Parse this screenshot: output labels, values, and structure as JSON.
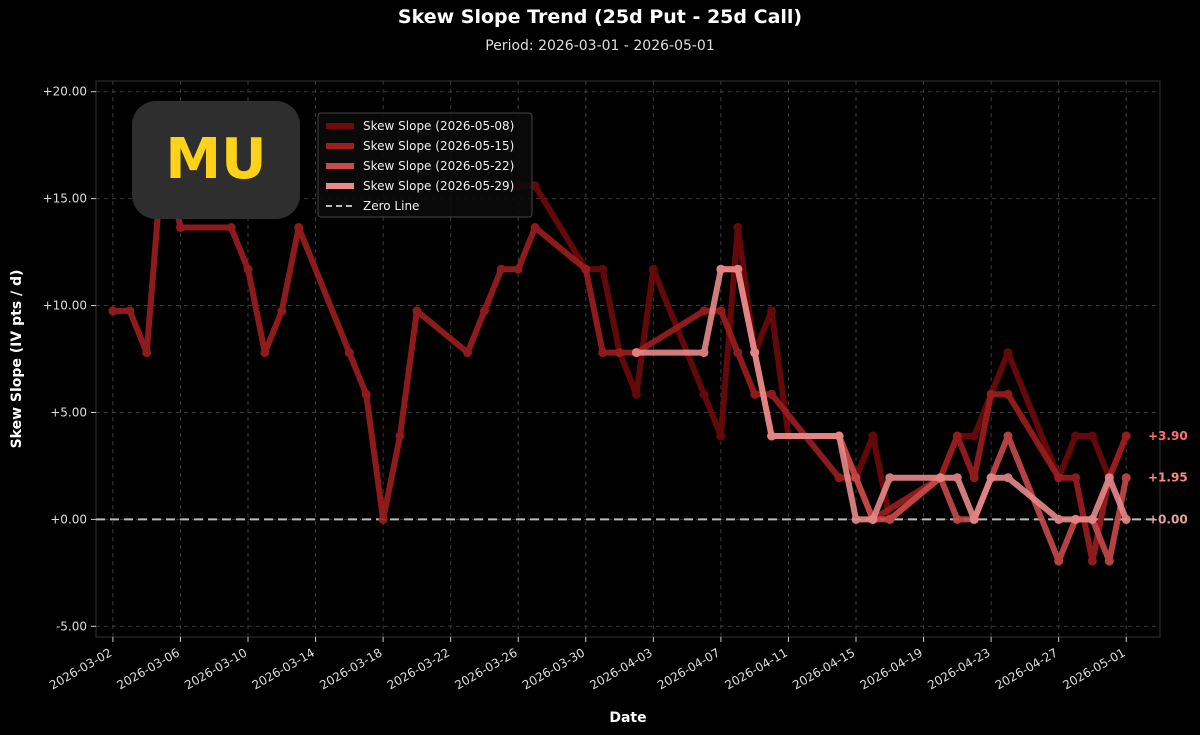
{
  "chart_data": {
    "type": "line",
    "title": "Skew Slope Trend (25d Put - 25d Call)",
    "subtitle": "Period: 2026-03-01 - 2026-05-01",
    "xlabel": "Date",
    "ylabel": "Skew Slope (IV pts / d)",
    "ylim": [
      -5.5,
      20.5
    ],
    "xlim": [
      "2026-02-29",
      "2026-05-03"
    ],
    "yticks": [
      "-5.00",
      "+0.00",
      "+5.00",
      "+10.00",
      "+15.00",
      "+20.00"
    ],
    "xticks": [
      "2026-03-02",
      "2026-03-06",
      "2026-03-10",
      "2026-03-14",
      "2026-03-18",
      "2026-03-22",
      "2026-03-26",
      "2026-03-30",
      "2026-04-03",
      "2026-04-07",
      "2026-04-11",
      "2026-04-15",
      "2026-04-19",
      "2026-04-23",
      "2026-04-27",
      "2026-05-01"
    ],
    "grid": true,
    "legend_position": "top-left",
    "series": [
      {
        "name": "Skew Slope (2026-05-08)",
        "color": "#6e0a0a",
        "points": [
          [
            "2026-03-26",
            15.6
          ],
          [
            "2026-03-27",
            15.6
          ],
          [
            "2026-03-30",
            11.7
          ],
          [
            "2026-03-31",
            11.7
          ],
          [
            "2026-04-01",
            7.8
          ],
          [
            "2026-04-02",
            5.85
          ],
          [
            "2026-04-03",
            11.7
          ],
          [
            "2026-04-06",
            5.85
          ],
          [
            "2026-04-07",
            3.9
          ],
          [
            "2026-04-08",
            13.65
          ],
          [
            "2026-04-09",
            7.8
          ],
          [
            "2026-04-10",
            9.75
          ],
          [
            "2026-04-11",
            3.9
          ],
          [
            "2026-04-14",
            3.9
          ],
          [
            "2026-04-15",
            1.95
          ],
          [
            "2026-04-16",
            3.9
          ],
          [
            "2026-04-17",
            0.0
          ],
          [
            "2026-04-20",
            1.95
          ],
          [
            "2026-04-21",
            3.9
          ],
          [
            "2026-04-22",
            3.9
          ],
          [
            "2026-04-23",
            5.85
          ],
          [
            "2026-04-24",
            7.8
          ],
          [
            "2026-04-27",
            1.95
          ],
          [
            "2026-04-28",
            3.9
          ],
          [
            "2026-04-29",
            3.9
          ],
          [
            "2026-04-30",
            1.95
          ],
          [
            "2026-05-01",
            3.9
          ]
        ]
      },
      {
        "name": "Skew Slope (2026-05-15)",
        "color": "#9e1f1f",
        "points": [
          [
            "2026-03-02",
            9.75
          ],
          [
            "2026-03-03",
            9.75
          ],
          [
            "2026-03-04",
            7.8
          ],
          [
            "2026-03-05",
            17.55
          ],
          [
            "2026-03-06",
            13.65
          ],
          [
            "2026-03-09",
            13.65
          ],
          [
            "2026-03-10",
            11.7
          ],
          [
            "2026-03-11",
            7.8
          ],
          [
            "2026-03-12",
            9.75
          ],
          [
            "2026-03-13",
            13.65
          ],
          [
            "2026-03-16",
            7.8
          ],
          [
            "2026-03-17",
            5.85
          ],
          [
            "2026-03-18",
            0.0
          ],
          [
            "2026-03-19",
            3.9
          ],
          [
            "2026-03-20",
            9.75
          ],
          [
            "2026-03-23",
            7.8
          ],
          [
            "2026-03-24",
            9.75
          ],
          [
            "2026-03-25",
            11.7
          ],
          [
            "2026-03-26",
            11.7
          ],
          [
            "2026-03-27",
            13.65
          ],
          [
            "2026-03-30",
            11.7
          ],
          [
            "2026-03-31",
            7.8
          ],
          [
            "2026-04-01",
            7.8
          ],
          [
            "2026-04-02",
            7.8
          ],
          [
            "2026-04-06",
            9.75
          ],
          [
            "2026-04-07",
            9.75
          ],
          [
            "2026-04-08",
            7.8
          ],
          [
            "2026-04-09",
            5.85
          ],
          [
            "2026-04-10",
            5.85
          ],
          [
            "2026-04-14",
            1.95
          ],
          [
            "2026-04-15",
            1.95
          ],
          [
            "2026-04-16",
            0.0
          ],
          [
            "2026-04-20",
            1.95
          ],
          [
            "2026-04-21",
            3.9
          ],
          [
            "2026-04-22",
            1.95
          ],
          [
            "2026-04-23",
            5.85
          ],
          [
            "2026-04-24",
            5.85
          ],
          [
            "2026-04-27",
            1.95
          ],
          [
            "2026-04-28",
            1.95
          ],
          [
            "2026-04-29",
            -1.95
          ],
          [
            "2026-04-30",
            1.95
          ],
          [
            "2026-05-01",
            3.9
          ]
        ]
      },
      {
        "name": "Skew Slope (2026-05-22)",
        "color": "#c84a4a",
        "points": [
          [
            "2026-04-07",
            11.7
          ],
          [
            "2026-04-08",
            11.7
          ],
          [
            "2026-04-09",
            7.8
          ],
          [
            "2026-04-10",
            3.9
          ],
          [
            "2026-04-14",
            3.9
          ],
          [
            "2026-04-15",
            1.95
          ],
          [
            "2026-04-16",
            0.0
          ],
          [
            "2026-04-17",
            0.0
          ],
          [
            "2026-04-20",
            1.95
          ],
          [
            "2026-04-21",
            0.0
          ],
          [
            "2026-04-22",
            0.0
          ],
          [
            "2026-04-23",
            1.95
          ],
          [
            "2026-04-24",
            3.9
          ],
          [
            "2026-04-27",
            -1.95
          ],
          [
            "2026-04-28",
            0.0
          ],
          [
            "2026-04-29",
            0.0
          ],
          [
            "2026-04-30",
            -1.95
          ],
          [
            "2026-05-01",
            1.95
          ]
        ]
      },
      {
        "name": "Skew Slope (2026-05-29)",
        "color": "#e88a8a",
        "points": [
          [
            "2026-04-02",
            7.8
          ],
          [
            "2026-04-06",
            7.8
          ],
          [
            "2026-04-07",
            11.7
          ],
          [
            "2026-04-08",
            11.7
          ],
          [
            "2026-04-09",
            7.8
          ],
          [
            "2026-04-10",
            3.9
          ],
          [
            "2026-04-14",
            3.9
          ],
          [
            "2026-04-15",
            0.0
          ],
          [
            "2026-04-16",
            0.0
          ],
          [
            "2026-04-17",
            1.95
          ],
          [
            "2026-04-20",
            1.95
          ],
          [
            "2026-04-21",
            1.95
          ],
          [
            "2026-04-22",
            0.0
          ],
          [
            "2026-04-23",
            1.95
          ],
          [
            "2026-04-24",
            1.95
          ],
          [
            "2026-04-27",
            0.0
          ],
          [
            "2026-04-28",
            0.0
          ],
          [
            "2026-04-29",
            0.0
          ],
          [
            "2026-04-30",
            1.95
          ],
          [
            "2026-05-01",
            0.0
          ]
        ]
      }
    ],
    "zero_line": {
      "name": "Zero Line",
      "color": "#bbbbbb",
      "value": 0
    },
    "end_labels": [
      {
        "text": "+3.90",
        "value": 3.9,
        "color": "#ff7070"
      },
      {
        "text": "+1.95",
        "value": 1.95,
        "color": "#ff8888"
      },
      {
        "text": "+0.00",
        "value": 0.0,
        "color": "#e8a0a0"
      }
    ]
  },
  "badge": {
    "ticker": "MU"
  }
}
